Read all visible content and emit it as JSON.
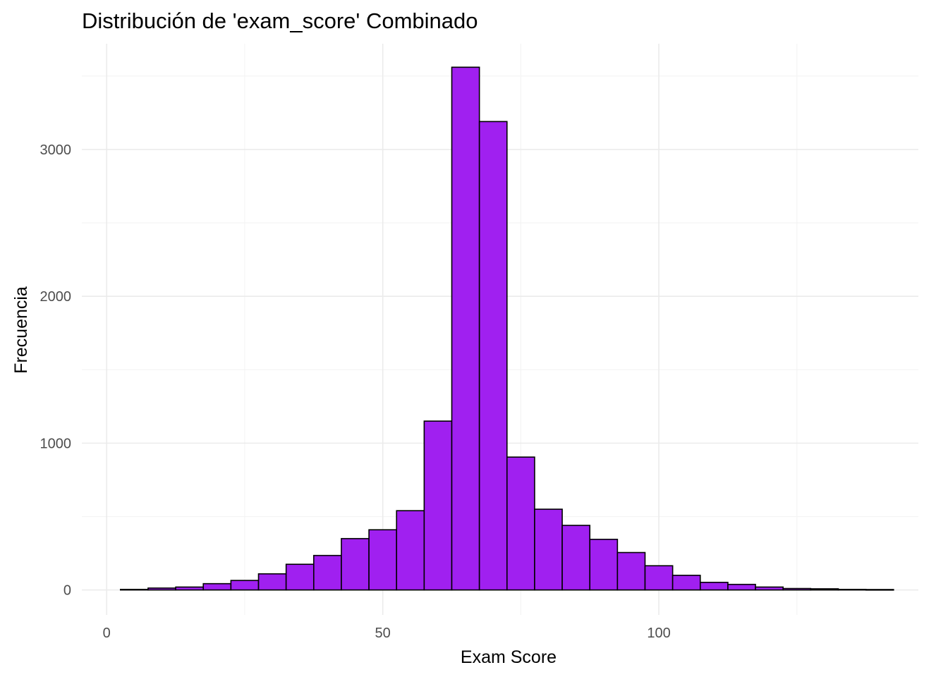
{
  "chart_data": {
    "type": "bar",
    "title": "Distribución de 'exam_score' Combinado",
    "xlabel": "Exam Score",
    "ylabel": "Frecuencia",
    "bar_color": "#A020F0",
    "edge_color": "#000000",
    "grid_color": "#EBEBEB",
    "grid": true,
    "legend": "none",
    "xlim": [
      -4.5,
      147
    ],
    "ylim": [
      -170,
      3720
    ],
    "x_ticks": [
      0,
      50,
      100
    ],
    "x_tick_labels": [
      "0",
      "50",
      "100"
    ],
    "x_minor_ticks": [
      25,
      75,
      125
    ],
    "y_ticks": [
      0,
      1000,
      2000,
      3000
    ],
    "y_tick_labels": [
      "0",
      "1000",
      "2000",
      "3000"
    ],
    "y_minor_ticks": [
      500,
      1500,
      2500,
      3500
    ],
    "bin_width": 5,
    "bin_starts": [
      2.5,
      7.5,
      12.5,
      17.5,
      22.5,
      27.5,
      32.5,
      37.5,
      42.5,
      47.5,
      52.5,
      57.5,
      62.5,
      67.5,
      72.5,
      77.5,
      82.5,
      87.5,
      92.5,
      97.5,
      102.5,
      107.5,
      112.5,
      117.5,
      122.5,
      127.5,
      132.5,
      137.5
    ],
    "values": [
      4,
      13,
      20,
      43,
      65,
      110,
      175,
      235,
      350,
      410,
      540,
      1150,
      3560,
      3190,
      905,
      550,
      440,
      345,
      255,
      165,
      100,
      52,
      38,
      20,
      10,
      8,
      4,
      3
    ]
  }
}
